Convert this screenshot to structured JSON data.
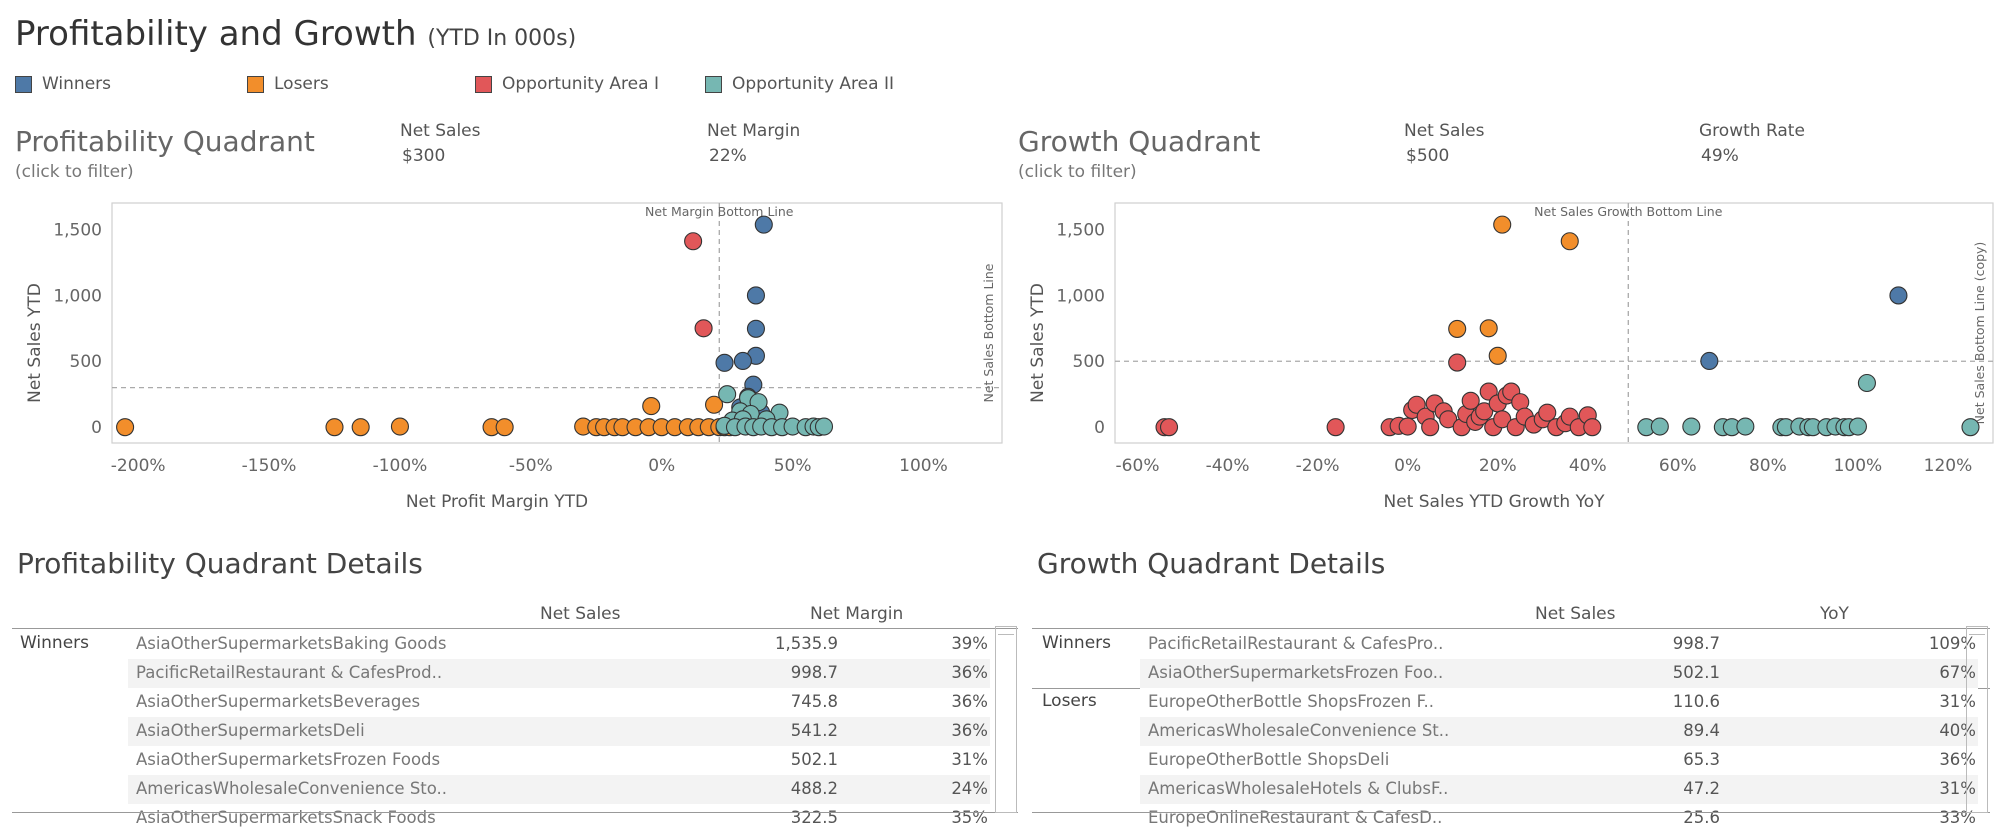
{
  "header": {
    "title": "Profitability and Growth",
    "subtitle": "(YTD In 000s)"
  },
  "legend": [
    {
      "label": "Winners",
      "color": "#4e79a7"
    },
    {
      "label": "Losers",
      "color": "#f28e2b"
    },
    {
      "label": "Opportunity Area I",
      "color": "#e15759"
    },
    {
      "label": "Opportunity Area II",
      "color": "#76b7b2"
    }
  ],
  "profitability": {
    "title": "Profitability Quadrant",
    "hint": "(click to filter)",
    "kpi1_label": "Net Sales",
    "kpi1_value": "$300",
    "kpi2_label": "Net Margin",
    "kpi2_value": "22%"
  },
  "growth": {
    "title": "Growth Quadrant",
    "hint": "(click to filter)",
    "kpi1_label": "Net Sales",
    "kpi1_value": "$500",
    "kpi2_label": "Growth Rate",
    "kpi2_value": "49%"
  },
  "chart_data": [
    {
      "type": "scatter",
      "xlabel": "Net Profit Margin YTD",
      "ylabel": "Net Sales YTD",
      "xlim": [
        -210,
        130
      ],
      "ylim": [
        -120,
        1700
      ],
      "x_ticks": [
        -200,
        -150,
        -100,
        -50,
        0,
        50,
        100
      ],
      "x_tick_labels": [
        "-200%",
        "-150%",
        "-100%",
        "-50%",
        "0%",
        "50%",
        "100%"
      ],
      "y_ticks": [
        0,
        500,
        1000,
        1500
      ],
      "y_tick_labels": [
        "0",
        "500",
        "1,000",
        "1,500"
      ],
      "ref_x": {
        "value": 22,
        "label": "Net Margin Bottom Line"
      },
      "ref_y": {
        "value": 300,
        "label": "Net Sales Bottom Line"
      },
      "series": [
        {
          "name": "Winners",
          "color": "#4e79a7",
          "points": [
            [
              39,
              1536
            ],
            [
              36,
              999
            ],
            [
              36,
              746
            ],
            [
              36,
              541
            ],
            [
              31,
              502
            ],
            [
              24,
              488
            ],
            [
              35,
              322
            ],
            [
              33,
              230
            ],
            [
              30,
              150
            ],
            [
              38,
              110
            ],
            [
              34,
              60
            ]
          ]
        },
        {
          "name": "Losers",
          "color": "#f28e2b",
          "points": [
            [
              -205,
              0
            ],
            [
              -125,
              0
            ],
            [
              -115,
              0
            ],
            [
              -100,
              5
            ],
            [
              -65,
              0
            ],
            [
              -60,
              0
            ],
            [
              -30,
              5
            ],
            [
              -25,
              0
            ],
            [
              -22,
              0
            ],
            [
              -18,
              0
            ],
            [
              -15,
              0
            ],
            [
              -10,
              0
            ],
            [
              -5,
              0
            ],
            [
              -4,
              160
            ],
            [
              0,
              0
            ],
            [
              5,
              0
            ],
            [
              10,
              0
            ],
            [
              14,
              0
            ],
            [
              18,
              0
            ],
            [
              20,
              170
            ],
            [
              22,
              0
            ],
            [
              24,
              0
            ],
            [
              26,
              0
            ]
          ]
        },
        {
          "name": "Opportunity Area I",
          "color": "#e15759",
          "points": [
            [
              12,
              1410
            ],
            [
              16,
              750
            ]
          ]
        },
        {
          "name": "Opportunity Area II",
          "color": "#76b7b2",
          "points": [
            [
              25,
              250
            ],
            [
              33,
              220
            ],
            [
              37,
              190
            ],
            [
              30,
              120
            ],
            [
              34,
              100
            ],
            [
              45,
              110
            ],
            [
              27,
              50
            ],
            [
              31,
              60
            ],
            [
              40,
              60
            ],
            [
              24,
              10
            ],
            [
              28,
              0
            ],
            [
              32,
              5
            ],
            [
              35,
              0
            ],
            [
              38,
              5
            ],
            [
              42,
              0
            ],
            [
              46,
              0
            ],
            [
              50,
              5
            ],
            [
              55,
              0
            ],
            [
              58,
              5
            ],
            [
              60,
              0
            ],
            [
              62,
              5
            ]
          ]
        }
      ]
    },
    {
      "type": "scatter",
      "xlabel": "Net Sales YTD Growth YoY",
      "ylabel": "Net Sales YTD",
      "xlim": [
        -65,
        130
      ],
      "ylim": [
        -120,
        1700
      ],
      "x_ticks": [
        -60,
        -40,
        -20,
        0,
        20,
        40,
        60,
        80,
        100,
        120
      ],
      "x_tick_labels": [
        "-60%",
        "-40%",
        "-20%",
        "0%",
        "20%",
        "40%",
        "60%",
        "80%",
        "100%",
        "120%"
      ],
      "y_ticks": [
        0,
        500,
        1000,
        1500
      ],
      "y_tick_labels": [
        "0",
        "500",
        "1,000",
        "1,500"
      ],
      "ref_x": {
        "value": 49,
        "label": "Net Sales Growth Bottom Line"
      },
      "ref_y": {
        "value": 500,
        "label": "Net Sales Bottom Line (copy)"
      },
      "series": [
        {
          "name": "Winners",
          "color": "#4e79a7",
          "points": [
            [
              109,
              999
            ],
            [
              67,
              502
            ]
          ]
        },
        {
          "name": "Losers",
          "color": "#f28e2b",
          "points": [
            [
              21,
              1536
            ],
            [
              36,
              1410
            ],
            [
              11,
              745
            ],
            [
              18,
              750
            ],
            [
              20,
              541
            ]
          ]
        },
        {
          "name": "Opportunity Area I",
          "color": "#e15759",
          "points": [
            [
              -54,
              0
            ],
            [
              -53,
              0
            ],
            [
              -16,
              0
            ],
            [
              -4,
              0
            ],
            [
              -2,
              10
            ],
            [
              0,
              5
            ],
            [
              1,
              130
            ],
            [
              2,
              170
            ],
            [
              4,
              80
            ],
            [
              5,
              0
            ],
            [
              6,
              180
            ],
            [
              8,
              120
            ],
            [
              9,
              60
            ],
            [
              11,
              490
            ],
            [
              12,
              0
            ],
            [
              13,
              100
            ],
            [
              14,
              200
            ],
            [
              15,
              40
            ],
            [
              16,
              80
            ],
            [
              17,
              120
            ],
            [
              18,
              270
            ],
            [
              19,
              0
            ],
            [
              20,
              180
            ],
            [
              21,
              60
            ],
            [
              22,
              240
            ],
            [
              23,
              270
            ],
            [
              24,
              0
            ],
            [
              25,
              190
            ],
            [
              26,
              80
            ],
            [
              28,
              20
            ],
            [
              30,
              60
            ],
            [
              31,
              110
            ],
            [
              33,
              0
            ],
            [
              35,
              30
            ],
            [
              36,
              80
            ],
            [
              38,
              0
            ],
            [
              40,
              90
            ],
            [
              41,
              0
            ]
          ]
        },
        {
          "name": "Opportunity Area II",
          "color": "#76b7b2",
          "points": [
            [
              53,
              0
            ],
            [
              56,
              5
            ],
            [
              63,
              5
            ],
            [
              70,
              0
            ],
            [
              72,
              0
            ],
            [
              75,
              5
            ],
            [
              83,
              0
            ],
            [
              84,
              0
            ],
            [
              87,
              5
            ],
            [
              89,
              0
            ],
            [
              90,
              0
            ],
            [
              93,
              0
            ],
            [
              95,
              5
            ],
            [
              97,
              0
            ],
            [
              98,
              0
            ],
            [
              100,
              5
            ],
            [
              102,
              335
            ],
            [
              125,
              0
            ]
          ]
        }
      ]
    }
  ],
  "profitability_details": {
    "title": "Profitability Quadrant Details",
    "col_sales": "Net Sales",
    "col_metric": "Net Margin",
    "groups": [
      {
        "label": "Winners",
        "rows": [
          {
            "name": "AsiaOtherSupermarketsBaking Goods",
            "sales": "1,535.9",
            "metric": "39%"
          },
          {
            "name": "PacificRetailRestaurant & CafesProd..",
            "sales": "998.7",
            "metric": "36%"
          },
          {
            "name": "AsiaOtherSupermarketsBeverages",
            "sales": "745.8",
            "metric": "36%"
          },
          {
            "name": "AsiaOtherSupermarketsDeli",
            "sales": "541.2",
            "metric": "36%"
          },
          {
            "name": "AsiaOtherSupermarketsFrozen Foods",
            "sales": "502.1",
            "metric": "31%"
          },
          {
            "name": "AmericasWholesaleConvenience Sto..",
            "sales": "488.2",
            "metric": "24%"
          },
          {
            "name": "AsiaOtherSupermarketsSnack Foods",
            "sales": "322.5",
            "metric": "35%"
          }
        ]
      }
    ]
  },
  "growth_details": {
    "title": "Growth Quadrant Details",
    "col_sales": "Net Sales",
    "col_metric": "YoY",
    "groups": [
      {
        "label": "Winners",
        "rows": [
          {
            "name": "PacificRetailRestaurant & CafesPro..",
            "sales": "998.7",
            "metric": "109%"
          },
          {
            "name": "AsiaOtherSupermarketsFrozen Foo..",
            "sales": "502.1",
            "metric": "67%"
          }
        ]
      },
      {
        "label": "Losers",
        "rows": [
          {
            "name": "EuropeOtherBottle ShopsFrozen F..",
            "sales": "110.6",
            "metric": "31%"
          },
          {
            "name": "AmericasWholesaleConvenience St..",
            "sales": "89.4",
            "metric": "40%"
          },
          {
            "name": "EuropeOtherBottle ShopsDeli",
            "sales": "65.3",
            "metric": "36%"
          },
          {
            "name": "AmericasWholesaleHotels & ClubsF..",
            "sales": "47.2",
            "metric": "31%"
          },
          {
            "name": "EuropeOnlineRestaurant & CafesD..",
            "sales": "25.6",
            "metric": "33%"
          }
        ]
      }
    ]
  }
}
